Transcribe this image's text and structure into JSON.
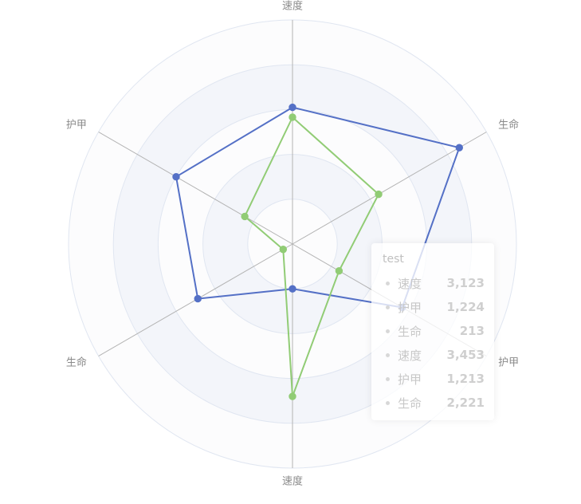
{
  "chart_data": {
    "type": "radar",
    "indicators": [
      {
        "name": "速度",
        "max": 5000
      },
      {
        "name": "生命",
        "max": 5000
      },
      {
        "name": "护甲",
        "max": 5000
      },
      {
        "name": "速度",
        "max": 5000
      },
      {
        "name": "生命",
        "max": 5000
      },
      {
        "name": "护甲",
        "max": 5000
      }
    ],
    "split_number": 5,
    "series": [
      {
        "color": "#5470c6",
        "values": [
          3050,
          4300,
          2830,
          1000,
          2440,
          3000
        ]
      },
      {
        "color": "#91cc75",
        "values": [
          2830,
          2220,
          1200,
          3400,
          240,
          1230
        ]
      }
    ],
    "colors": {
      "axis_line": "#b3b3b3",
      "split_line": "#e0e6f1",
      "split_area_light": "#fcfcfd",
      "split_area_dark": "#f3f5fa"
    }
  },
  "tooltip": {
    "title": "test",
    "rows": [
      {
        "label": "速度",
        "value": "3,123"
      },
      {
        "label": "护甲",
        "value": "1,224"
      },
      {
        "label": "生命",
        "value": "213"
      },
      {
        "label": "速度",
        "value": "3,453"
      },
      {
        "label": "护甲",
        "value": "1,213"
      },
      {
        "label": "生命",
        "value": "2,221"
      }
    ]
  }
}
